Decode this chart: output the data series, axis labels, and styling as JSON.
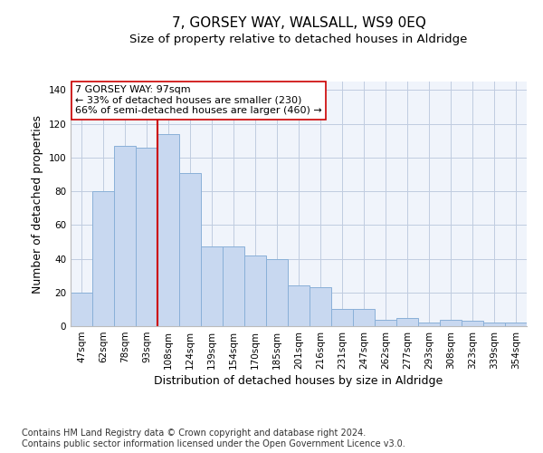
{
  "title": "7, GORSEY WAY, WALSALL, WS9 0EQ",
  "subtitle": "Size of property relative to detached houses in Aldridge",
  "xlabel": "Distribution of detached houses by size in Aldridge",
  "ylabel": "Number of detached properties",
  "categories": [
    "47sqm",
    "62sqm",
    "78sqm",
    "93sqm",
    "108sqm",
    "124sqm",
    "139sqm",
    "154sqm",
    "170sqm",
    "185sqm",
    "201sqm",
    "216sqm",
    "231sqm",
    "247sqm",
    "262sqm",
    "277sqm",
    "293sqm",
    "308sqm",
    "323sqm",
    "339sqm",
    "354sqm"
  ],
  "values": [
    20,
    80,
    107,
    106,
    114,
    91,
    47,
    47,
    42,
    40,
    24,
    23,
    10,
    10,
    4,
    5,
    2,
    4,
    3,
    2,
    2
  ],
  "bar_color": "#c8d8f0",
  "bar_edge_color": "#8ab0d8",
  "grid_color": "#c0cce0",
  "background_color": "#ffffff",
  "plot_bg_color": "#f0f4fb",
  "vline_color": "#cc0000",
  "vline_x_index": 3.5,
  "annotation_text": "7 GORSEY WAY: 97sqm\n← 33% of detached houses are smaller (230)\n66% of semi-detached houses are larger (460) →",
  "annotation_box_facecolor": "#ffffff",
  "annotation_box_edgecolor": "#cc0000",
  "ylim": [
    0,
    145
  ],
  "yticks": [
    0,
    20,
    40,
    60,
    80,
    100,
    120,
    140
  ],
  "footer": "Contains HM Land Registry data © Crown copyright and database right 2024.\nContains public sector information licensed under the Open Government Licence v3.0.",
  "title_fontsize": 11,
  "subtitle_fontsize": 9.5,
  "label_fontsize": 9,
  "tick_fontsize": 7.5,
  "footer_fontsize": 7
}
